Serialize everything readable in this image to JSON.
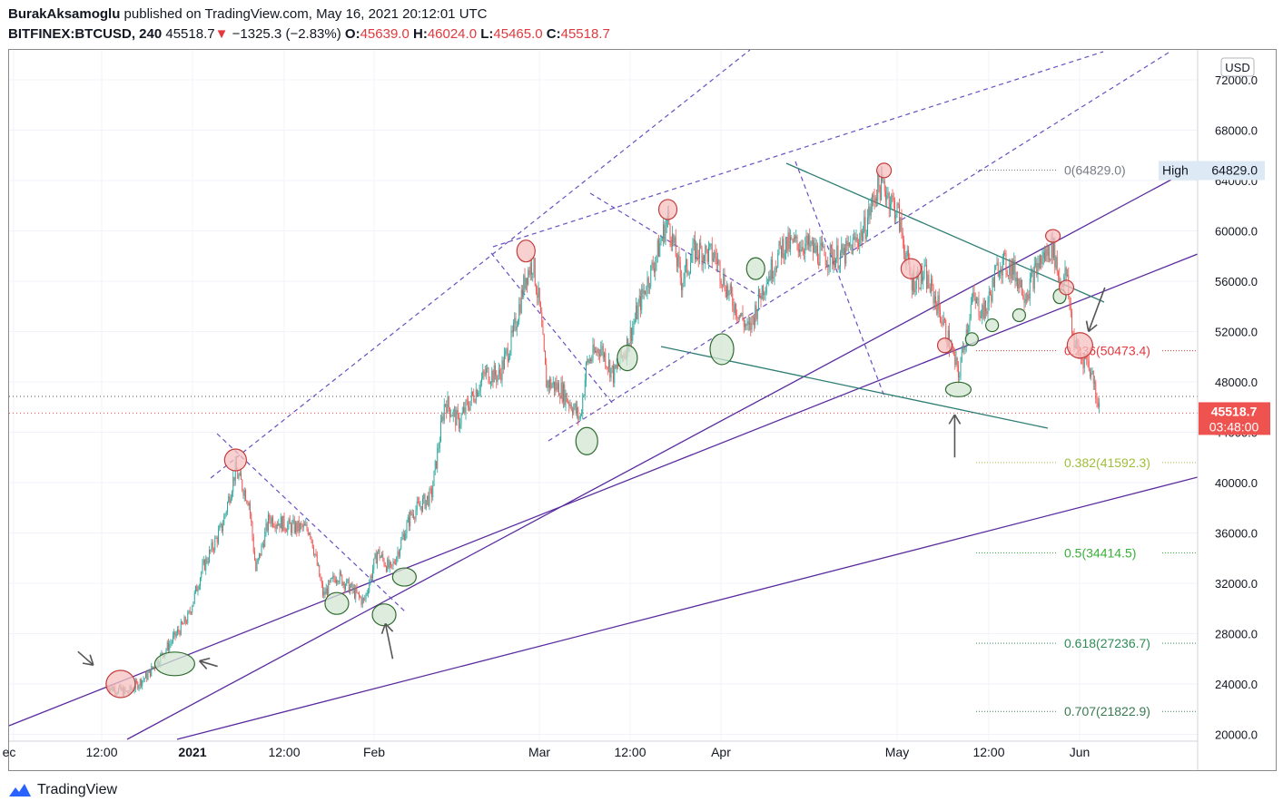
{
  "header": {
    "author": "BurakAksamoglu",
    "published_text": "published on TradingView.com, May 16, 2021 20:12:01 UTC",
    "symbol": "BITFINEX:BTCUSD, 240",
    "last": "45518.7",
    "arrow": "▼",
    "change": "−1325.3 (−2.83%)",
    "o_label": "O:",
    "o_value": "45639.0",
    "h_label": "H:",
    "h_value": "46024.0",
    "l_label": "L:",
    "l_value": "45465.0",
    "c_label": "C:",
    "c_value": "45518.7"
  },
  "footer": {
    "brand": "TradingView",
    "logo_icon": "tradingview-logo-icon"
  },
  "colors": {
    "up": "#26a69a",
    "down": "#ef5350",
    "trend": "#5b2c9f",
    "dashed": "#6a4fc2",
    "teal_line": "#2e7d73",
    "price_tag": "#ef5350",
    "red_circle": "#f5c0c0",
    "green_circle": "#d3e6d3"
  },
  "chart_data": {
    "type": "candlestick",
    "symbol": "BITFINEX:BTCUSD",
    "interval": "240",
    "currency": "USD",
    "y_axis_ticks": [
      20000.0,
      24000.0,
      28000.0,
      32000.0,
      36000.0,
      40000.0,
      44000.0,
      48000.0,
      52000.0,
      56000.0,
      60000.0,
      64000.0,
      68000.0,
      72000.0
    ],
    "y_axis_labels": [
      "20000.0",
      "24000.0",
      "28000.0",
      "32000.0",
      "36000.0",
      "40000.0",
      "44000.0",
      "48000.0",
      "52000.0",
      "56000.0",
      "60000.0",
      "64000.0",
      "68000.0",
      "72000.0"
    ],
    "ylim": [
      19600,
      74500
    ],
    "x_axis_labels": [
      "ec",
      "12:00",
      "2021",
      "12:00",
      "Feb",
      "Mar",
      "12:00",
      "Apr",
      "May",
      "12:00",
      "Jun"
    ],
    "last_price": "45518.7",
    "countdown": "03:48:00",
    "high_label": "High",
    "high_value": "64829.0",
    "price_path": [
      [
        "2020-12-20",
        23800
      ],
      [
        "2020-12-23",
        23300
      ],
      [
        "2020-12-26",
        24700
      ],
      [
        "2020-12-29",
        27000
      ],
      [
        "2021-01-01",
        29300
      ],
      [
        "2021-01-03",
        33000
      ],
      [
        "2021-01-06",
        36500
      ],
      [
        "2021-01-08",
        41000
      ],
      [
        "2021-01-10",
        38500
      ],
      [
        "2021-01-11",
        33000
      ],
      [
        "2021-01-13",
        37200
      ],
      [
        "2021-01-16",
        36500
      ],
      [
        "2021-01-19",
        36300
      ],
      [
        "2021-01-21",
        31000
      ],
      [
        "2021-01-23",
        32700
      ],
      [
        "2021-01-27",
        30500
      ],
      [
        "2021-01-29",
        34500
      ],
      [
        "2021-01-31",
        33000
      ],
      [
        "2021-02-03",
        37500
      ],
      [
        "2021-02-06",
        39000
      ],
      [
        "2021-02-08",
        46500
      ],
      [
        "2021-02-10",
        44800
      ],
      [
        "2021-02-14",
        48700
      ],
      [
        "2021-02-16",
        48500
      ],
      [
        "2021-02-18",
        51500
      ],
      [
        "2021-02-20",
        56500
      ],
      [
        "2021-02-21",
        57500
      ],
      [
        "2021-02-22",
        54000
      ],
      [
        "2021-02-23",
        48000
      ],
      [
        "2021-02-25",
        47500
      ],
      [
        "2021-02-27",
        46000
      ],
      [
        "2021-02-28",
        45000
      ],
      [
        "2021-03-01",
        49500
      ],
      [
        "2021-03-03",
        50800
      ],
      [
        "2021-03-05",
        48500
      ],
      [
        "2021-03-07",
        51000
      ],
      [
        "2021-03-09",
        54500
      ],
      [
        "2021-03-11",
        57500
      ],
      [
        "2021-03-13",
        61000
      ],
      [
        "2021-03-15",
        56000
      ],
      [
        "2021-03-17",
        58500
      ],
      [
        "2021-03-20",
        58000
      ],
      [
        "2021-03-22",
        55000
      ],
      [
        "2021-03-25",
        52000
      ],
      [
        "2021-03-27",
        55500
      ],
      [
        "2021-03-30",
        58800
      ],
      [
        "2021-04-02",
        59000
      ],
      [
        "2021-04-05",
        58000
      ],
      [
        "2021-04-08",
        58000
      ],
      [
        "2021-04-11",
        60000
      ],
      [
        "2021-04-13",
        63500
      ],
      [
        "2021-04-14",
        63500
      ],
      [
        "2021-04-16",
        61500
      ],
      [
        "2021-04-18",
        56000
      ],
      [
        "2021-04-20",
        56500
      ],
      [
        "2021-04-22",
        54000
      ],
      [
        "2021-04-24",
        50500
      ],
      [
        "2021-04-25",
        48500
      ],
      [
        "2021-04-27",
        54500
      ],
      [
        "2021-04-29",
        53500
      ],
      [
        "2021-05-01",
        57500
      ],
      [
        "2021-05-03",
        57000
      ],
      [
        "2021-05-05",
        55000
      ],
      [
        "2021-05-07",
        57500
      ],
      [
        "2021-05-09",
        58800
      ],
      [
        "2021-05-10",
        56000
      ],
      [
        "2021-05-11",
        56500
      ],
      [
        "2021-05-12",
        51500
      ],
      [
        "2021-05-13",
        50000
      ],
      [
        "2021-05-14",
        49800
      ],
      [
        "2021-05-15",
        48200
      ],
      [
        "2021-05-16",
        45518.7
      ]
    ],
    "fibonacci_levels": [
      {
        "label": "0(64829.0)",
        "value": 64829.0,
        "color": "#787b86"
      },
      {
        "label": "0.236(50473.4)",
        "value": 50473.4,
        "color": "#e0393e"
      },
      {
        "label": "0.382(41592.3)",
        "value": 41592.3,
        "color": "#9fbf3a"
      },
      {
        "label": "0.5(34414.5)",
        "value": 34414.5,
        "color": "#3aaf3a"
      },
      {
        "label": "0.618(27236.7)",
        "value": 27236.7,
        "color": "#2e8b57"
      },
      {
        "label": "0.707(21822.9)",
        "value": 21822.9,
        "color": "#3a7a50"
      }
    ],
    "grid": true,
    "legend": "none"
  }
}
